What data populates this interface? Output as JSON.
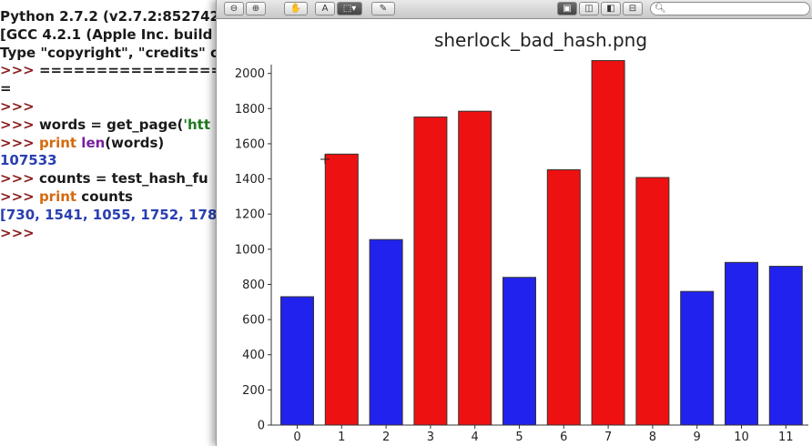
{
  "terminal": {
    "lines": [
      {
        "parts": [
          {
            "t": "Python 2.7.2 (v2.7.2:852742",
            "c": "plain"
          }
        ]
      },
      {
        "parts": [
          {
            "t": "[GCC 4.2.1 (Apple Inc. build",
            "c": "plain"
          }
        ]
      },
      {
        "parts": [
          {
            "t": "Type \"copyright\", \"credits\" o",
            "c": "plain"
          }
        ]
      },
      {
        "parts": [
          {
            "t": ">>> ",
            "c": "prompt"
          },
          {
            "t": "==========================",
            "c": "plain"
          }
        ]
      },
      {
        "parts": [
          {
            "t": "=",
            "c": "plain"
          }
        ]
      },
      {
        "parts": [
          {
            "t": ">>>",
            "c": "prompt"
          }
        ]
      },
      {
        "parts": [
          {
            "t": ">>> ",
            "c": "prompt"
          },
          {
            "t": "words = get_page(",
            "c": "plain"
          },
          {
            "t": "'htt",
            "c": "str"
          }
        ]
      },
      {
        "parts": [
          {
            "t": ">>> ",
            "c": "prompt"
          },
          {
            "t": "print ",
            "c": "kw"
          },
          {
            "t": "len",
            "c": "fn"
          },
          {
            "t": "(words)",
            "c": "plain"
          }
        ]
      },
      {
        "parts": [
          {
            "t": "107533",
            "c": "num"
          }
        ]
      },
      {
        "parts": [
          {
            "t": ">>> ",
            "c": "prompt"
          },
          {
            "t": "counts = test_hash_fu",
            "c": "plain"
          }
        ]
      },
      {
        "parts": [
          {
            "t": ">>> ",
            "c": "prompt"
          },
          {
            "t": "print ",
            "c": "kw"
          },
          {
            "t": "counts",
            "c": "plain"
          }
        ]
      },
      {
        "parts": [
          {
            "t": "[730, 1541, 1055, 1752, 178",
            "c": "num"
          }
        ]
      },
      {
        "parts": [
          {
            "t": ">>>",
            "c": "prompt"
          }
        ]
      }
    ]
  },
  "toolbar": {
    "zoom_out_icon": "zoom-out-icon",
    "zoom_in_icon": "zoom-in-icon",
    "hand_icon": "hand-icon",
    "text_select_label": "A",
    "rect_select_icon": "rect-select-icon",
    "annotate_icon": "pencil-icon",
    "search_placeholder": ""
  },
  "colors": {
    "red": "#ee1111",
    "blue": "#2222ee"
  },
  "chart_data": {
    "type": "bar",
    "title": "sherlock_bad_hash.png",
    "categories": [
      "0",
      "1",
      "2",
      "3",
      "4",
      "5",
      "6",
      "7",
      "8",
      "9",
      "10",
      "11"
    ],
    "values": [
      730,
      1541,
      1055,
      1752,
      1785,
      840,
      1452,
      2073,
      1408,
      760,
      925,
      903
    ],
    "bar_colors": [
      "blue",
      "red",
      "blue",
      "red",
      "red",
      "blue",
      "red",
      "red",
      "red",
      "blue",
      "blue",
      "blue"
    ],
    "ylim": [
      0,
      2050
    ],
    "yticks": [
      "0",
      "200",
      "400",
      "600",
      "800",
      "1000",
      "1200",
      "1400",
      "1600",
      "1800",
      "2000"
    ],
    "xlabel": "",
    "ylabel": "",
    "grid": false
  }
}
